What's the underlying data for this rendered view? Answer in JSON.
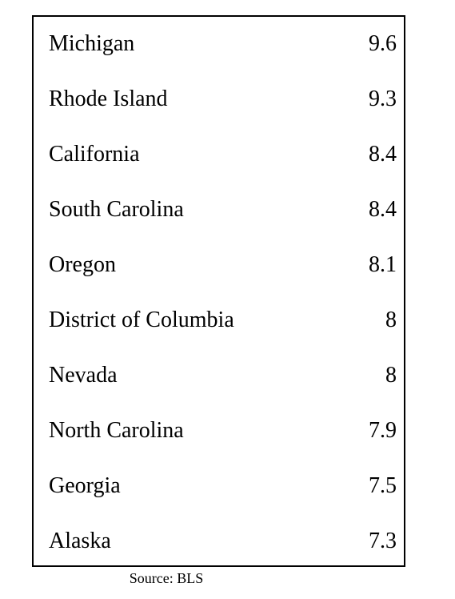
{
  "chart_data": {
    "type": "table",
    "categories": [
      "Michigan",
      "Rhode Island",
      "California",
      "South Carolina",
      "Oregon",
      "District of Columbia",
      "Nevada",
      "North Carolina",
      "Georgia",
      "Alaska"
    ],
    "values": [
      "9.6",
      "9.3",
      "8.4",
      "8.4",
      "8.1",
      "8",
      "8",
      "7.9",
      "7.5",
      "7.3"
    ],
    "source": "Source: BLS"
  }
}
